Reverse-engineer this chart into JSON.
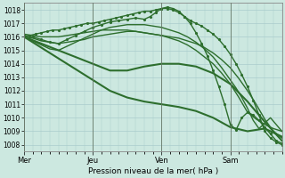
{
  "xlabel": "Pression niveau de la mer( hPa )",
  "bg_color": "#cce8e0",
  "grid_color": "#aacccc",
  "line_color": "#2d6e2d",
  "ylim": [
    1007.5,
    1018.5
  ],
  "xlim": [
    0,
    90
  ],
  "day_labels": [
    "Mer",
    "Jeu",
    "Ven",
    "Sam"
  ],
  "day_positions": [
    0,
    24,
    48,
    72
  ],
  "yticks": [
    1008,
    1009,
    1010,
    1011,
    1012,
    1013,
    1014,
    1015,
    1016,
    1017,
    1018
  ],
  "series": [
    {
      "x": [
        0,
        2,
        4,
        6,
        8,
        10,
        12,
        14,
        16,
        18,
        20,
        22,
        24,
        26,
        28,
        30,
        32,
        34,
        36,
        38,
        40,
        42,
        44,
        46,
        48,
        50,
        52,
        54,
        56,
        58,
        60,
        62,
        64,
        66,
        68,
        70,
        72,
        74,
        76,
        78,
        80,
        82,
        84,
        86,
        88,
        90
      ],
      "y": [
        1016.0,
        1016.1,
        1016.2,
        1016.3,
        1016.4,
        1016.5,
        1016.5,
        1016.6,
        1016.7,
        1016.8,
        1016.9,
        1017.0,
        1017.0,
        1017.1,
        1017.2,
        1017.3,
        1017.4,
        1017.5,
        1017.6,
        1017.7,
        1017.8,
        1017.9,
        1017.9,
        1018.0,
        1018.1,
        1018.1,
        1018.0,
        1017.8,
        1017.5,
        1017.2,
        1017.0,
        1016.8,
        1016.5,
        1016.2,
        1015.8,
        1015.3,
        1014.7,
        1014.0,
        1013.2,
        1012.3,
        1011.3,
        1010.2,
        1009.0,
        1008.5,
        1008.2,
        1008.0
      ],
      "marker": true,
      "lw": 1.0
    },
    {
      "x": [
        0,
        3,
        6,
        9,
        12,
        15,
        18,
        21,
        24,
        27,
        30,
        33,
        36,
        39,
        42,
        45,
        48,
        51,
        54,
        57,
        60,
        63,
        66,
        69,
        72,
        75,
        78,
        81,
        84,
        87,
        90
      ],
      "y": [
        1016.2,
        1016.1,
        1016.0,
        1016.0,
        1016.0,
        1016.1,
        1016.2,
        1016.3,
        1016.4,
        1016.5,
        1016.5,
        1016.5,
        1016.5,
        1016.4,
        1016.3,
        1016.2,
        1016.1,
        1016.0,
        1015.9,
        1015.7,
        1015.5,
        1015.2,
        1014.8,
        1014.3,
        1013.7,
        1012.9,
        1012.0,
        1011.0,
        1009.9,
        1009.0,
        1008.5
      ],
      "marker": false,
      "lw": 1.0
    },
    {
      "x": [
        0,
        3,
        6,
        9,
        12,
        15,
        18,
        21,
        24,
        27,
        30,
        33,
        36,
        39,
        42,
        45,
        48,
        51,
        54,
        57,
        60,
        63,
        66,
        69,
        72,
        75,
        78,
        81,
        84,
        87,
        90
      ],
      "y": [
        1016.0,
        1015.9,
        1015.7,
        1015.6,
        1015.5,
        1015.6,
        1015.7,
        1015.8,
        1016.0,
        1016.1,
        1016.2,
        1016.3,
        1016.4,
        1016.4,
        1016.3,
        1016.2,
        1016.1,
        1015.9,
        1015.7,
        1015.4,
        1015.0,
        1014.5,
        1014.0,
        1013.3,
        1012.5,
        1011.5,
        1010.4,
        1009.9,
        1009.5,
        1009.2,
        1009.0
      ],
      "marker": false,
      "lw": 1.0
    },
    {
      "x": [
        0,
        3,
        6,
        9,
        12,
        15,
        18,
        21,
        24,
        27,
        30,
        33,
        36,
        39,
        42,
        44,
        46,
        48,
        50,
        52,
        54,
        56,
        58,
        60,
        62,
        64,
        66,
        68,
        70,
        72,
        74,
        76,
        78,
        80,
        82,
        84,
        86,
        88,
        90
      ],
      "y": [
        1016.1,
        1016.0,
        1015.8,
        1015.6,
        1015.5,
        1015.8,
        1016.1,
        1016.4,
        1016.7,
        1016.9,
        1017.1,
        1017.2,
        1017.3,
        1017.4,
        1017.3,
        1017.5,
        1017.8,
        1018.1,
        1018.2,
        1018.1,
        1017.9,
        1017.5,
        1017.0,
        1016.3,
        1015.5,
        1014.6,
        1013.5,
        1012.3,
        1011.0,
        1009.5,
        1009.1,
        1010.0,
        1010.4,
        1010.2,
        1009.8,
        1009.3,
        1008.8,
        1008.3,
        1008.1
      ],
      "marker": true,
      "lw": 1.0
    },
    {
      "x": [
        0,
        3,
        6,
        9,
        12,
        15,
        18,
        21,
        24,
        27,
        30,
        33,
        36,
        39,
        42,
        45,
        48,
        51,
        54,
        57,
        60,
        63,
        66,
        69,
        72,
        74,
        76,
        78,
        80,
        82,
        84,
        86,
        88,
        90
      ],
      "y": [
        1016.0,
        1015.7,
        1015.4,
        1015.1,
        1015.0,
        1015.3,
        1015.6,
        1015.9,
        1016.2,
        1016.5,
        1016.7,
        1016.8,
        1016.9,
        1016.9,
        1016.9,
        1016.8,
        1016.7,
        1016.5,
        1016.3,
        1016.0,
        1015.6,
        1015.1,
        1014.5,
        1013.7,
        1012.8,
        1012.2,
        1011.5,
        1010.7,
        1009.8,
        1009.2,
        1009.6,
        1010.0,
        1009.5,
        1009.0
      ],
      "marker": false,
      "lw": 1.0
    },
    {
      "x": [
        0,
        6,
        12,
        18,
        24,
        30,
        36,
        42,
        48,
        54,
        60,
        66,
        72,
        78,
        84,
        90
      ],
      "y": [
        1016.0,
        1015.5,
        1015.0,
        1014.5,
        1014.0,
        1013.5,
        1013.5,
        1013.8,
        1014.0,
        1014.0,
        1013.8,
        1013.3,
        1012.5,
        1011.2,
        1009.7,
        1008.3
      ],
      "marker": false,
      "lw": 1.5
    },
    {
      "x": [
        0,
        6,
        12,
        18,
        24,
        30,
        36,
        42,
        48,
        54,
        60,
        66,
        72,
        78,
        84,
        90
      ],
      "y": [
        1016.0,
        1015.2,
        1014.4,
        1013.6,
        1012.8,
        1012.0,
        1011.5,
        1011.2,
        1011.0,
        1010.8,
        1010.5,
        1010.0,
        1009.3,
        1009.0,
        1009.2,
        1008.6
      ],
      "marker": false,
      "lw": 1.5
    }
  ]
}
